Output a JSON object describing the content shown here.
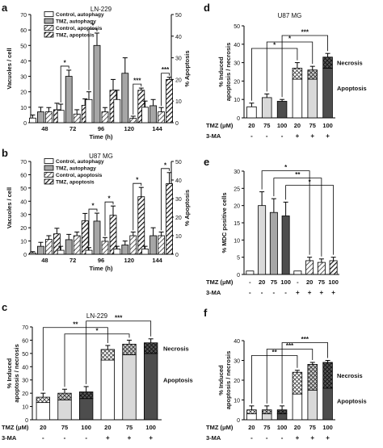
{
  "colors": {
    "white_bar": "#ffffff",
    "light_gray": "#d9d9d9",
    "mid_gray": "#a6a6a6",
    "dark_gray": "#4d4d4d",
    "error_bar": "#000000"
  },
  "chart_data": [
    {
      "id": "a",
      "panel_letter": "a",
      "title": "LN-229",
      "type": "bar",
      "xlabel": "Time (h)",
      "ylabel": "Vacuoles / cell",
      "ylabel2": "% Apoptosis",
      "categories": [
        "48",
        "72",
        "96",
        "120",
        "144"
      ],
      "ylim": [
        0,
        70
      ],
      "y_ticks": [
        "0",
        "10",
        "20",
        "30",
        "40",
        "50",
        "60",
        "70"
      ],
      "ylim2": [
        0,
        50
      ],
      "y2_ticks": [
        "0",
        "10",
        "20",
        "30",
        "40",
        "50"
      ],
      "legend": [
        "Control, autophagy",
        "TMZ, autophagy",
        "Control, apoptosis",
        "TMZ, apoptosis"
      ],
      "series": [
        {
          "name": "Control, autophagy",
          "axis": "left",
          "values": [
            3,
            8,
            15,
            15,
            10
          ],
          "errors": [
            2,
            4,
            5,
            6,
            4
          ]
        },
        {
          "name": "TMZ, autophagy",
          "axis": "left",
          "values": [
            7,
            30,
            50,
            32,
            11
          ],
          "errors": [
            3,
            4,
            8,
            10,
            4
          ]
        },
        {
          "name": "Control, apoptosis",
          "axis": "right",
          "values": [
            5,
            4,
            5,
            2,
            5
          ],
          "errors": [
            2,
            2,
            2,
            1,
            2
          ]
        },
        {
          "name": "TMZ, apoptosis",
          "axis": "right",
          "values": [
            6,
            8,
            15,
            15,
            20
          ],
          "errors": [
            3,
            3,
            5,
            1,
            1
          ]
        }
      ],
      "significance": [
        {
          "group": 1,
          "from": 0,
          "to": 1,
          "label": "*"
        },
        {
          "group": 2,
          "from": 0,
          "to": 1,
          "label": "*"
        },
        {
          "group": 3,
          "from": 2,
          "to": 3,
          "label": "***"
        },
        {
          "group": 4,
          "from": 2,
          "to": 3,
          "label": "***"
        }
      ]
    },
    {
      "id": "b",
      "panel_letter": "b",
      "title": "U87 MG",
      "type": "bar",
      "xlabel": "Time (h)",
      "ylabel": "Vacuoles / cell",
      "ylabel2": "% Apoptosis",
      "categories": [
        "48",
        "72",
        "96",
        "120",
        "144"
      ],
      "ylim": [
        0,
        70
      ],
      "y_ticks": [
        "0",
        "10",
        "20",
        "30",
        "40",
        "50",
        "60",
        "70"
      ],
      "ylim2": [
        0,
        50
      ],
      "y2_ticks": [
        "0",
        "10",
        "20",
        "30",
        "40",
        "50"
      ],
      "legend": [
        "Control, autophagy",
        "TMZ, autophagy",
        "Control, apoptosis",
        "TMZ, apoptosis"
      ],
      "series": [
        {
          "name": "Control, autophagy",
          "axis": "left",
          "values": [
            1,
            3,
            3,
            4,
            4
          ],
          "errors": [
            1,
            3,
            2,
            2,
            2
          ]
        },
        {
          "name": "TMZ, autophagy",
          "axis": "left",
          "values": [
            6,
            11,
            25,
            7,
            14
          ],
          "errors": [
            3,
            4,
            6,
            3,
            6
          ]
        },
        {
          "name": "Control, apoptosis",
          "axis": "right",
          "values": [
            8,
            10,
            7,
            10,
            10
          ],
          "errors": [
            2,
            2,
            2,
            2,
            2
          ]
        },
        {
          "name": "TMZ, apoptosis",
          "axis": "right",
          "values": [
            11,
            18,
            21,
            31,
            38
          ],
          "errors": [
            3,
            4,
            5,
            5,
            6
          ]
        }
      ],
      "significance": [
        {
          "group": 2,
          "from": 0,
          "to": 1,
          "label": "*"
        },
        {
          "group": 2,
          "from": 2,
          "to": 3,
          "label": "*"
        },
        {
          "group": 3,
          "from": 2,
          "to": 3,
          "label": "*"
        },
        {
          "group": 4,
          "from": 2,
          "to": 3,
          "label": "*"
        }
      ]
    },
    {
      "id": "c",
      "panel_letter": "c",
      "title": "LN-229",
      "type": "bar",
      "ylabel": "% Induced\napoptosis / necrosis",
      "ylim": [
        0,
        70
      ],
      "y_ticks": [
        "0",
        "10",
        "20",
        "30",
        "40",
        "50",
        "60",
        "70"
      ],
      "tmz_label": "TMZ (μM)",
      "tmz_values": [
        "20",
        "75",
        "100",
        "20",
        "75",
        "100"
      ],
      "ma_label": "3-MA",
      "ma_values": [
        "-",
        "-",
        "-",
        "+",
        "+",
        "+"
      ],
      "annotations": [
        "Necrosis",
        "Apoptosis"
      ],
      "bars": [
        {
          "apoptosis": 13,
          "necrosis": 4,
          "error": 3,
          "fill": "white"
        },
        {
          "apoptosis": 15,
          "necrosis": 5,
          "error": 3,
          "fill": "light"
        },
        {
          "apoptosis": 16,
          "necrosis": 5,
          "error": 4,
          "fill": "dark"
        },
        {
          "apoptosis": 45,
          "necrosis": 8,
          "error": 3,
          "fill": "white"
        },
        {
          "apoptosis": 49,
          "necrosis": 8,
          "error": 3,
          "fill": "light"
        },
        {
          "apoptosis": 50,
          "necrosis": 8,
          "error": 3,
          "fill": "dark"
        }
      ],
      "significance": [
        {
          "from": 1,
          "to": 4,
          "label": "*"
        },
        {
          "from": 0,
          "to": 3,
          "label": "**"
        },
        {
          "from": 2,
          "to": 5,
          "label": "***"
        }
      ]
    },
    {
      "id": "d",
      "panel_letter": "d",
      "title": "U87 MG",
      "type": "bar",
      "ylabel": "% Induced\napoptosis / necrosis",
      "ylim": [
        0,
        50
      ],
      "y_ticks": [
        "0",
        "10",
        "20",
        "30",
        "40",
        "50"
      ],
      "tmz_label": "TMZ (μM)",
      "tmz_values": [
        "20",
        "75",
        "100",
        "20",
        "75",
        "100"
      ],
      "ma_label": "3-MA",
      "ma_values": [
        "-",
        "-",
        "-",
        "+",
        "+",
        "+"
      ],
      "annotations": [
        "Necrosis",
        "Apoptosis"
      ],
      "bars": [
        {
          "apoptosis": 6,
          "necrosis": 0,
          "error": 2,
          "fill": "white"
        },
        {
          "apoptosis": 11,
          "necrosis": 0,
          "error": 2,
          "fill": "light"
        },
        {
          "apoptosis": 9,
          "necrosis": 0,
          "error": 1,
          "fill": "dark"
        },
        {
          "apoptosis": 21,
          "necrosis": 6,
          "error": 3,
          "fill": "white"
        },
        {
          "apoptosis": 21,
          "necrosis": 5,
          "error": 2,
          "fill": "light"
        },
        {
          "apoptosis": 27,
          "necrosis": 6,
          "error": 2,
          "fill": "dark"
        }
      ],
      "significance": [
        {
          "from": 0,
          "to": 3,
          "label": "*"
        },
        {
          "from": 1,
          "to": 4,
          "label": "*"
        },
        {
          "from": 2,
          "to": 5,
          "label": "***"
        }
      ]
    },
    {
      "id": "e",
      "panel_letter": "e",
      "type": "bar",
      "ylabel": "% MDC positive cells",
      "ylim": [
        0,
        30
      ],
      "y_ticks": [
        "0",
        "5",
        "10",
        "15",
        "20",
        "25",
        "30"
      ],
      "tmz_label": "TMZ (μM)",
      "tmz_values": [
        "-",
        "20",
        "75",
        "100",
        "-",
        "20",
        "75",
        "100"
      ],
      "ma_label": "3-MA",
      "ma_values": [
        "-",
        "-",
        "-",
        "-",
        "+",
        "+",
        "+",
        "+"
      ],
      "bars": [
        {
          "value": 1,
          "error": 0,
          "fill": "white"
        },
        {
          "value": 20,
          "error": 4,
          "fill": "light"
        },
        {
          "value": 18,
          "error": 4,
          "fill": "mid"
        },
        {
          "value": 17,
          "error": 4,
          "fill": "dark"
        },
        {
          "value": 1,
          "error": 0,
          "fill": "white"
        },
        {
          "value": 4,
          "error": 1,
          "fill": "light"
        },
        {
          "value": 3.5,
          "error": 1,
          "fill": "mid"
        },
        {
          "value": 4,
          "error": 1,
          "fill": "dark"
        }
      ],
      "significance": [
        {
          "from": 1,
          "to": 5,
          "label": "*"
        },
        {
          "from": 2,
          "to": 6,
          "label": "**"
        },
        {
          "from": 3,
          "to": 7,
          "label": "*"
        }
      ]
    },
    {
      "id": "f",
      "panel_letter": "f",
      "type": "bar",
      "ylabel": "% Induced\napoptosis / necrosis",
      "ylim": [
        0,
        40
      ],
      "y_ticks": [
        "0",
        "10",
        "20",
        "30",
        "40"
      ],
      "tmz_label": "TMZ (μM)",
      "tmz_values": [
        "20",
        "75",
        "100",
        "20",
        "75",
        "100"
      ],
      "ma_label": "3-MA",
      "ma_values": [
        "-",
        "-",
        "-",
        "+",
        "+",
        "+"
      ],
      "annotations": [
        "Necrosis",
        "Apoptosis"
      ],
      "bars": [
        {
          "apoptosis": 3,
          "necrosis": 2,
          "error": 2,
          "fill": "white"
        },
        {
          "apoptosis": 3,
          "necrosis": 2,
          "error": 2,
          "fill": "light"
        },
        {
          "apoptosis": 3,
          "necrosis": 2,
          "error": 2,
          "fill": "dark"
        },
        {
          "apoptosis": 13,
          "necrosis": 11,
          "error": 1,
          "fill": "white"
        },
        {
          "apoptosis": 15,
          "necrosis": 13,
          "error": 1,
          "fill": "light"
        },
        {
          "apoptosis": 16,
          "necrosis": 13,
          "error": 1,
          "fill": "dark"
        }
      ],
      "significance": [
        {
          "from": 0,
          "to": 3,
          "label": "**"
        },
        {
          "from": 1,
          "to": 4,
          "label": "***"
        },
        {
          "from": 2,
          "to": 5,
          "label": "***"
        }
      ]
    }
  ]
}
